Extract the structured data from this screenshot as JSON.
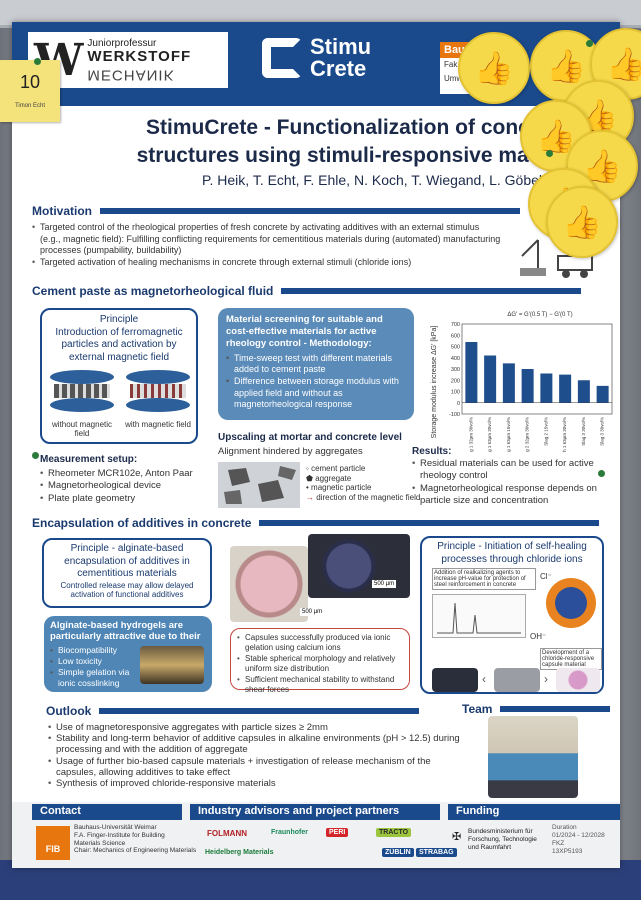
{
  "header": {
    "logo_left_prefix": "Juniorprofessur",
    "logo_left_name": "WERKSTOFF",
    "logo_left_mirror": "MECHANIK",
    "logo_mid_line1": "Stimu",
    "logo_mid_line2": "Crete",
    "logo_right_bar": "Bau",
    "logo_right_sub1": "Fak",
    "logo_right_sub2": "Umw"
  },
  "note": {
    "number": "10",
    "name": "Timon Echt"
  },
  "title": {
    "line1": "StimuCrete - Functionalization of concr",
    "line2": "structures using stimuli-responsive mate"
  },
  "authors": "P. Heik, T. Echt, F. Ehle, N. Koch, T. Wiegand, L. Göbel",
  "motivation": {
    "heading": "Motivation",
    "bullets": [
      "Targeted control of the rheological properties of fresh concrete by activating additives with an external stimulus (e.g., magnetic field): Fulfilling conflicting requirements for cementitious materials during (automated) manufacturing processes (pumpability, buildability)",
      "Targeted activation of healing mechanisms in concrete through external stimuli (chloride ions)"
    ]
  },
  "cement": {
    "heading": "Cement paste as magnetorheological fluid",
    "principle_title": "Principle",
    "principle_text": "Introduction of ferromagnetic particles and activation by external magnetic field",
    "without_label": "without magnetic field",
    "with_label": "with magnetic field",
    "setup_title": "Measurement setup:",
    "setup_items": [
      "Rheometer MCR102e, Anton Paar",
      "Magnetorheological device",
      "Plate plate geometry"
    ],
    "screening_title": "Material screening for suitable and cost-effective materials for active rheology control - Methodology:",
    "screening_items": [
      "Time-sweep test with different materials added to cement paste",
      "Difference between storage modulus with applied field and without as magnetorheological response"
    ],
    "upscaling_title": "Upscaling at mortar and concrete level",
    "upscaling_text": "Alignment hindered by aggregates",
    "legend_items": [
      "cement particle",
      "aggregate",
      "magnetic particle",
      "direction of the magnetic field"
    ],
    "results_title": "Results:",
    "results_items": [
      "Residual materials can be used for active rheology control",
      "Magnetorheological response depends on particle size and concentration"
    ]
  },
  "chart_data": {
    "type": "bar",
    "annotation": "ΔG' = G'(0.5 T) − G'(0 T)",
    "ylabel": "Storage modulus increase ΔG' [kPa]",
    "ylim": [
      -100,
      700
    ],
    "yticks": [
      -100,
      0,
      100,
      200,
      300,
      400,
      500,
      600,
      700
    ],
    "categories": [
      "Slag 1 32µm 30vol%",
      "Slag 1 63µm 30vol%",
      "Slag 1 63µm 15vol%",
      "Slag 2 32µm 30vol%",
      "Slag 2 15vol%",
      "Ash 1 63µm 30vol%",
      "Slag 3 30vol%",
      "Slag 3 30vol%"
    ],
    "values": [
      540,
      420,
      350,
      300,
      260,
      250,
      200,
      150
    ],
    "bar_color": "#1f4e8c"
  },
  "encapsulation": {
    "heading": "Encapsulation of additives in concrete",
    "principle_title": "Principle - alginate-based encapsulation of additives in cementitious materials",
    "principle_text": "Controlled release may allow delayed activation of functional additives",
    "hydrogel_title": "Alginate-based hydrogels are particularly attractive due to their",
    "hydrogel_items": [
      "Biocompatibility",
      "Low toxicity",
      "Simple gelation via ionic cosslinking"
    ],
    "scale1": "500 µm",
    "scale2": "500 µm",
    "capsule_items": [
      "Capsules successfully produced via ionic gelation using calcium ions",
      "Stable spherical morphology and relatively uniform size distribution",
      "Sufficient mechanical stability to withstand shear forces"
    ],
    "selfheal_title": "Principle - Initiation of self-healing processes through chloride ions",
    "selfheal_note1": "Addition of realkalizing agents to increase pH-value for protection of steel reinforcement in concrete",
    "selfheal_cl": "Cl⁻",
    "selfheal_oh": "OH⁻",
    "selfheal_note2": "Development of a chloride-responsive capsule material"
  },
  "outlook": {
    "heading": "Outlook",
    "items": [
      "Use of magnetoresponsive aggregates with particle sizes ≥ 2mm",
      "Stability and long-term behavior of additive capsules in alkaline environments (pH > 12.5) during processing and with the addition of aggregate",
      "Usage of further bio-based capsule materials + investigation of release mechanism of the capsules, allowing additives to take effect",
      "Synthesis of improved chloride-responsive materials"
    ]
  },
  "team": {
    "heading": "Team"
  },
  "footer": {
    "contact_heading": "Contact",
    "industry_heading": "Industry advisors and project partners",
    "funding_heading": "Funding",
    "contact_lines": [
      "Bauhaus-Universität Weimar",
      "F.A. Finger-Institute for Building",
      "Materials Science",
      "Chair: Mechanics of Engineering Materials"
    ],
    "fib": "FIB",
    "partners": [
      "FOLMANN",
      "Fraunhofer",
      "PERI",
      "Heidelberg Materials",
      "TRACTO",
      "ZÜBLIN",
      "STRABAG"
    ],
    "ministry": "Bundesministerium für Forschung, Technologie und Raumfahrt",
    "duration_label": "Duration",
    "duration": "01/2024 - 12/2028",
    "fkz_label": "FKZ",
    "fkz": "13XP5193"
  }
}
